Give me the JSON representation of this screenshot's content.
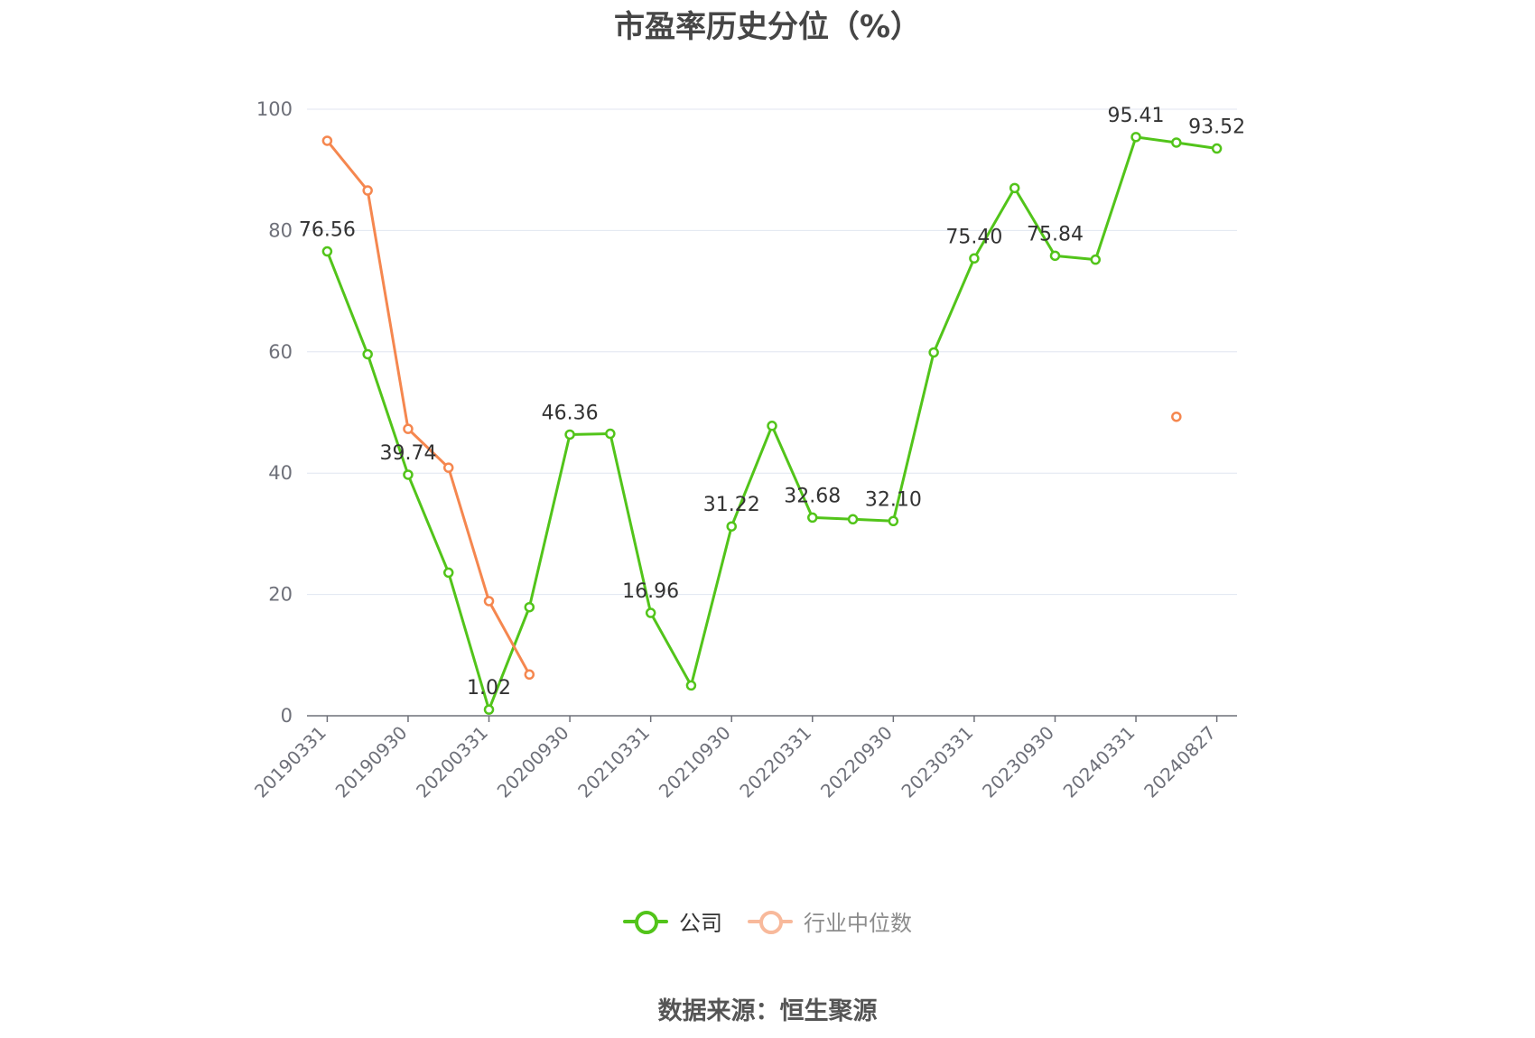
{
  "chart_data": {
    "type": "line",
    "title": "市盈率历史分位（%）",
    "source": "数据来源：恒生聚源",
    "ylim": [
      0,
      100
    ],
    "y_ticks": [
      "0",
      "20",
      "40",
      "60",
      "80",
      "100"
    ],
    "y_tick_values": [
      0,
      20,
      40,
      60,
      80,
      100
    ],
    "x_tick_labels": [
      "20190331",
      "20190930",
      "20200331",
      "20200930",
      "20210331",
      "20210930",
      "20220331",
      "20220930",
      "20230331",
      "20230930",
      "20240331",
      "20240827"
    ],
    "x_tick_indices": [
      0,
      2,
      4,
      6,
      8,
      10,
      12,
      14,
      16,
      18,
      20,
      22
    ],
    "point_count": 23,
    "grid": true,
    "legend_position": "bottom",
    "series": [
      {
        "name": "公司",
        "color": "#52c41a",
        "values": [
          76.56,
          59.6,
          39.74,
          23.6,
          1.02,
          17.9,
          46.36,
          46.5,
          16.96,
          5.0,
          31.22,
          47.8,
          32.68,
          32.4,
          32.1,
          59.9,
          75.4,
          87.0,
          75.84,
          75.2,
          95.41,
          94.5,
          93.52
        ],
        "labels": [
          "76.56",
          "",
          "39.74",
          "",
          "1.02",
          "",
          "46.36",
          "",
          "16.96",
          "",
          "31.22",
          "",
          "32.68",
          "",
          "32.10",
          "",
          "75.40",
          "",
          "75.84",
          "",
          "95.41",
          "",
          "93.52"
        ]
      },
      {
        "name": "行业中位数",
        "color": "#f5874f",
        "values": [
          94.8,
          86.6,
          47.3,
          40.9,
          18.9,
          6.8,
          null,
          null,
          null,
          null,
          null,
          null,
          null,
          null,
          null,
          null,
          null,
          null,
          null,
          null,
          null,
          49.3,
          null
        ],
        "labels": []
      }
    ]
  }
}
